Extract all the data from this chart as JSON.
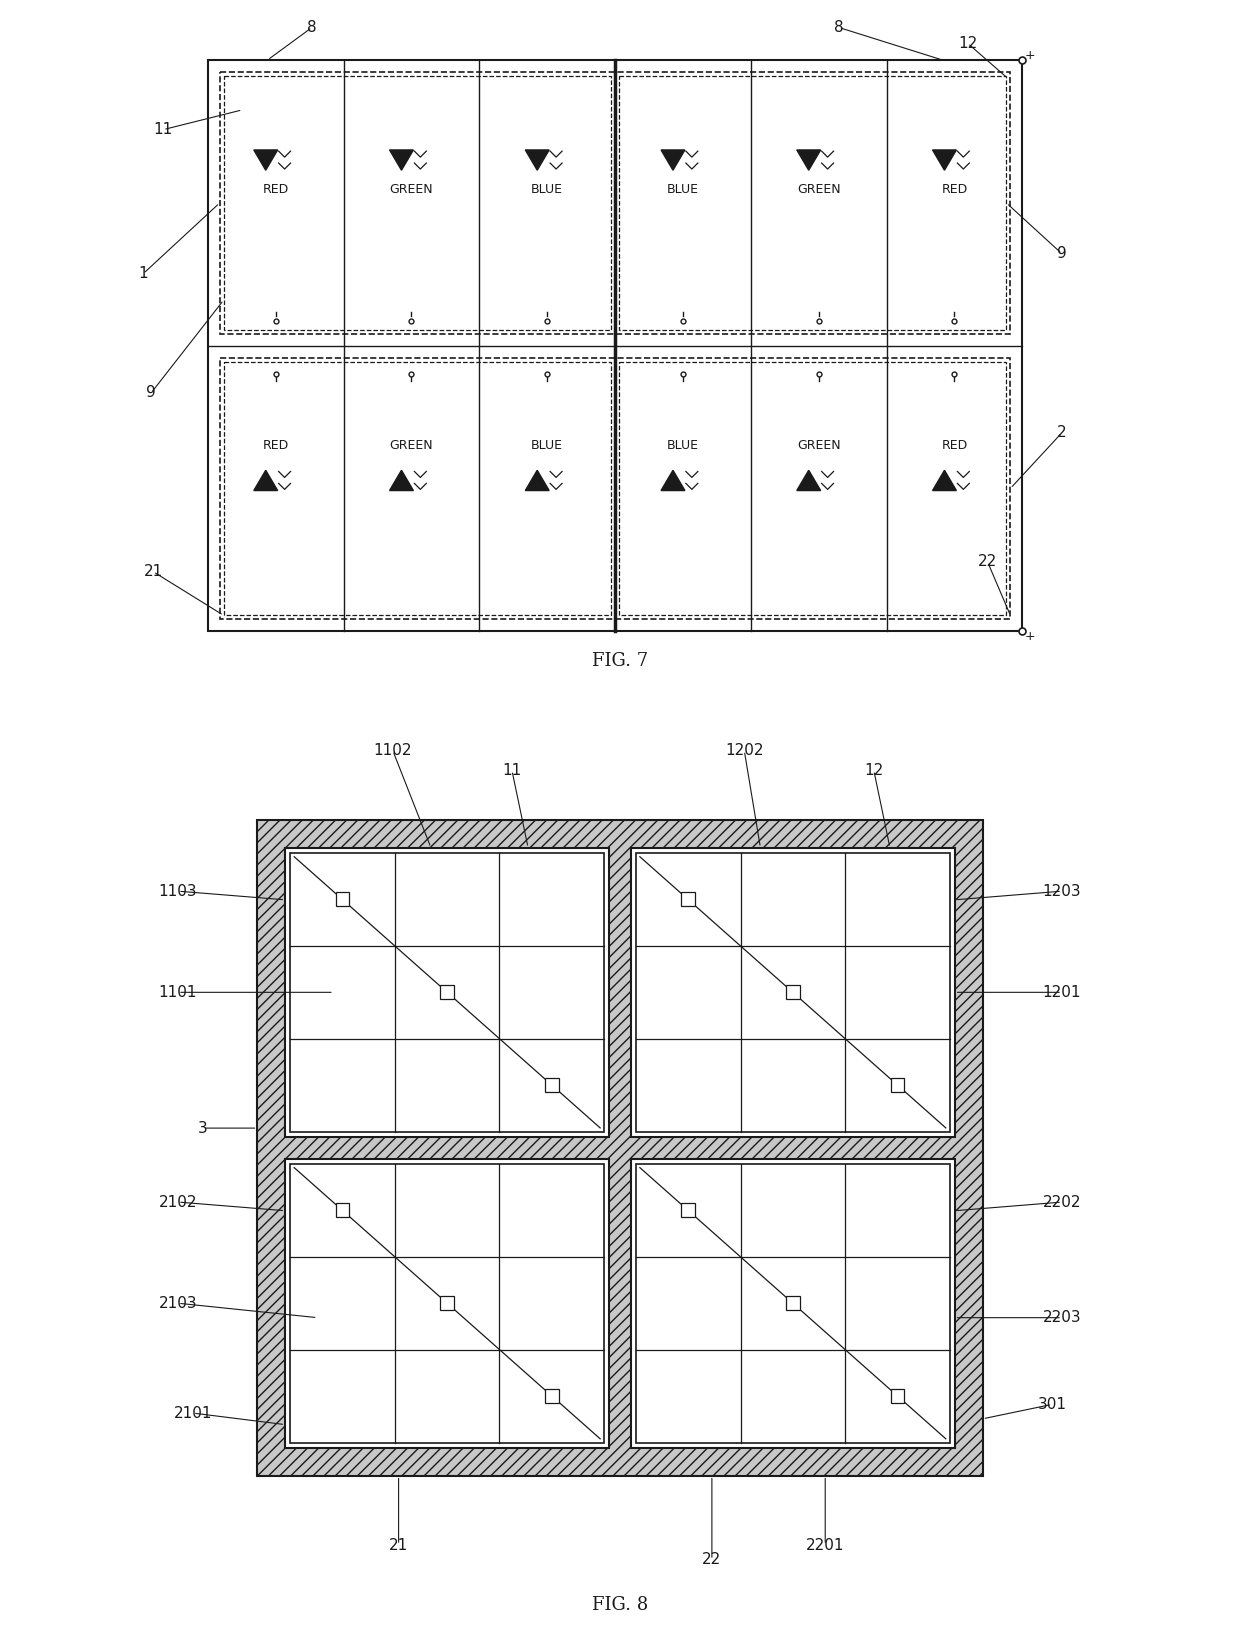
{
  "fig_width": 12.4,
  "fig_height": 16.37,
  "bg_color": "#ffffff",
  "lc": "#1a1a1a",
  "fig7_title": "FIG. 7",
  "fig8_title": "FIG. 8",
  "col_labels": [
    "RED",
    "GREEN",
    "BLUE",
    "BLUE",
    "GREEN",
    "RED"
  ]
}
